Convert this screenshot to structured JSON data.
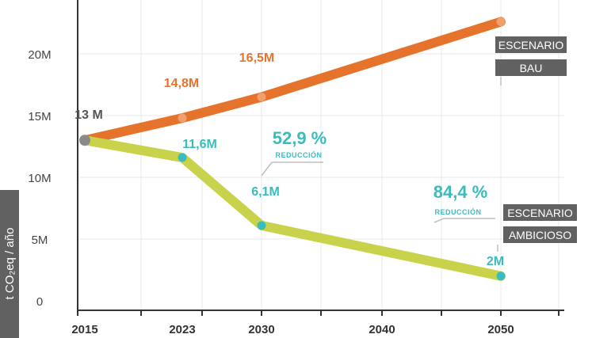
{
  "chart_data": {
    "type": "line",
    "xlabel": "",
    "ylabel": "t CO₂eq / año",
    "x_ticks": [
      "2015",
      "2023",
      "2030",
      "2040",
      "2050"
    ],
    "y_ticks": [
      "0",
      "5M",
      "10M",
      "15M",
      "20M"
    ],
    "xlim": [
      2015,
      2055
    ],
    "ylim": [
      0,
      24000000
    ],
    "grid": true,
    "series": [
      {
        "name": "ESCENARIO BAU",
        "color": "#e6732c",
        "points": [
          {
            "x": 2015,
            "y": 13000000,
            "label": "13 M"
          },
          {
            "x": 2023,
            "y": 14800000,
            "label": "14,8M"
          },
          {
            "x": 2030,
            "y": 16500000,
            "label": "16,5M"
          },
          {
            "x": 2050,
            "y": 22600000,
            "label": ""
          }
        ]
      },
      {
        "name": "ESCENARIO AMBICIOSO",
        "color": "#c8d34b",
        "points": [
          {
            "x": 2015,
            "y": 13000000,
            "label": ""
          },
          {
            "x": 2023,
            "y": 11600000,
            "label": "11,6M"
          },
          {
            "x": 2030,
            "y": 6100000,
            "label": "6,1M"
          },
          {
            "x": 2050,
            "y": 2000000,
            "label": "2M"
          }
        ]
      }
    ],
    "annotations": [
      {
        "value": "52,9 %",
        "text": "REDUCCIÓN",
        "x": 2030
      },
      {
        "value": "84,4 %",
        "text": "REDUCCIÓN",
        "x": 2050
      }
    ],
    "legend": [
      {
        "lines": [
          "ESCENARIO",
          "BAU"
        ]
      },
      {
        "lines": [
          "ESCENARIO",
          "AMBICIOSO"
        ]
      }
    ]
  }
}
